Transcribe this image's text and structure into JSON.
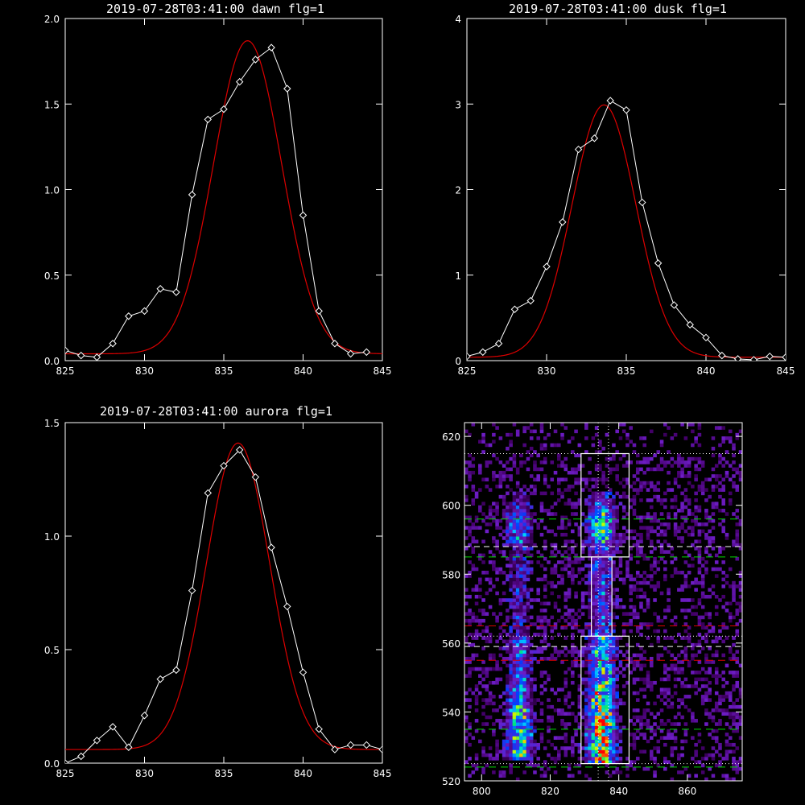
{
  "colors": {
    "background": "#000000",
    "data_line": "#ffffff",
    "fit_line": "#dd0000",
    "frame": "#ffffff"
  },
  "chart_data": [
    {
      "type": "line",
      "title": "2019-07-28T03:41:00 dawn flg=1",
      "xlim": [
        825,
        845
      ],
      "ylim": [
        0,
        2.0
      ],
      "xticks": [
        "825",
        "830",
        "835",
        "840",
        "845"
      ],
      "yticks": [
        "0.0",
        "0.5",
        "1.0",
        "1.5",
        "2.0"
      ],
      "series": [
        {
          "style": "white-diamonds",
          "x": [
            825,
            826,
            827,
            828,
            829,
            830,
            831,
            832,
            833,
            834,
            835,
            836,
            837,
            838,
            839,
            840,
            841,
            842,
            843,
            844
          ],
          "y": [
            0.06,
            0.03,
            0.02,
            0.1,
            0.26,
            0.29,
            0.42,
            0.4,
            0.97,
            1.41,
            1.47,
            1.63,
            1.76,
            1.83,
            1.59,
            0.85,
            0.29,
            0.1,
            0.04,
            0.05
          ]
        },
        {
          "style": "red-gaussian-fit",
          "amp": 1.83,
          "center": 836.5,
          "sigma": 2.15,
          "offset": 0.04
        }
      ]
    },
    {
      "type": "line",
      "title": "2019-07-28T03:41:00 dusk flg=1",
      "xlim": [
        825,
        845
      ],
      "ylim": [
        0,
        4
      ],
      "xticks": [
        "825",
        "830",
        "835",
        "840",
        "845"
      ],
      "yticks": [
        "0",
        "1",
        "2",
        "3",
        "4"
      ],
      "series": [
        {
          "style": "white-diamonds",
          "x": [
            825,
            826,
            827,
            828,
            829,
            830,
            831,
            832,
            833,
            834,
            835,
            836,
            837,
            838,
            839,
            840,
            841,
            842,
            843,
            844,
            845
          ],
          "y": [
            0.05,
            0.1,
            0.2,
            0.6,
            0.7,
            1.1,
            1.62,
            2.47,
            2.6,
            3.04,
            2.93,
            1.85,
            1.14,
            0.65,
            0.42,
            0.27,
            0.06,
            0.02,
            0.01,
            0.05,
            0.04
          ]
        },
        {
          "style": "red-gaussian-fit",
          "amp": 2.95,
          "center": 833.6,
          "sigma": 2.0,
          "offset": 0.04
        }
      ]
    },
    {
      "type": "line",
      "title": "2019-07-28T03:41:00 aurora flg=1",
      "xlim": [
        825,
        845
      ],
      "ylim": [
        0,
        1.5
      ],
      "xticks": [
        "825",
        "830",
        "835",
        "840",
        "845"
      ],
      "yticks": [
        "0.0",
        "0.5",
        "1.0",
        "1.5"
      ],
      "series": [
        {
          "style": "white-diamonds",
          "x": [
            825,
            826,
            827,
            828,
            829,
            830,
            831,
            832,
            833,
            834,
            835,
            836,
            837,
            838,
            839,
            840,
            841,
            842,
            843,
            844,
            845
          ],
          "y": [
            0.0,
            0.03,
            0.1,
            0.16,
            0.07,
            0.21,
            0.37,
            0.41,
            0.76,
            1.19,
            1.31,
            1.38,
            1.26,
            0.95,
            0.69,
            0.4,
            0.15,
            0.06,
            0.08,
            0.08,
            0.06
          ]
        },
        {
          "style": "red-gaussian-fit",
          "amp": 1.35,
          "center": 835.9,
          "sigma": 2.0,
          "offset": 0.06
        }
      ]
    },
    {
      "type": "heatmap",
      "title": "",
      "xlim": [
        795,
        876
      ],
      "ylim": [
        520,
        624
      ],
      "xticks": [
        "800",
        "820",
        "840",
        "860"
      ],
      "yticks": [
        "520",
        "540",
        "560",
        "580",
        "600",
        "620"
      ],
      "colormap": "black-purple-blue-cyan-green-yellow-red",
      "bright_columns_x": [
        811,
        835
      ],
      "boxes": [
        {
          "x": [
            829,
            843
          ],
          "y": [
            585,
            615
          ]
        },
        {
          "x": [
            832,
            838
          ],
          "y": [
            562,
            585
          ]
        },
        {
          "x": [
            829,
            843
          ],
          "y": [
            525,
            562
          ]
        }
      ],
      "vertical_dotted_x": [
        834,
        837
      ],
      "hlines": [
        {
          "y": 615,
          "style": "white-dotted"
        },
        {
          "y": 596,
          "style": "green-dashed"
        },
        {
          "y": 588,
          "style": "white-dashed"
        },
        {
          "y": 585,
          "style": "green-dashed"
        },
        {
          "y": 565,
          "style": "red-dashed"
        },
        {
          "y": 562,
          "style": "white-dotted"
        },
        {
          "y": 559,
          "style": "white-dashed"
        },
        {
          "y": 555,
          "style": "red-dashed"
        },
        {
          "y": 535,
          "style": "green-dashed"
        },
        {
          "y": 525,
          "style": "white-dotted"
        },
        {
          "y": 524,
          "style": "green-dashed"
        }
      ]
    }
  ]
}
